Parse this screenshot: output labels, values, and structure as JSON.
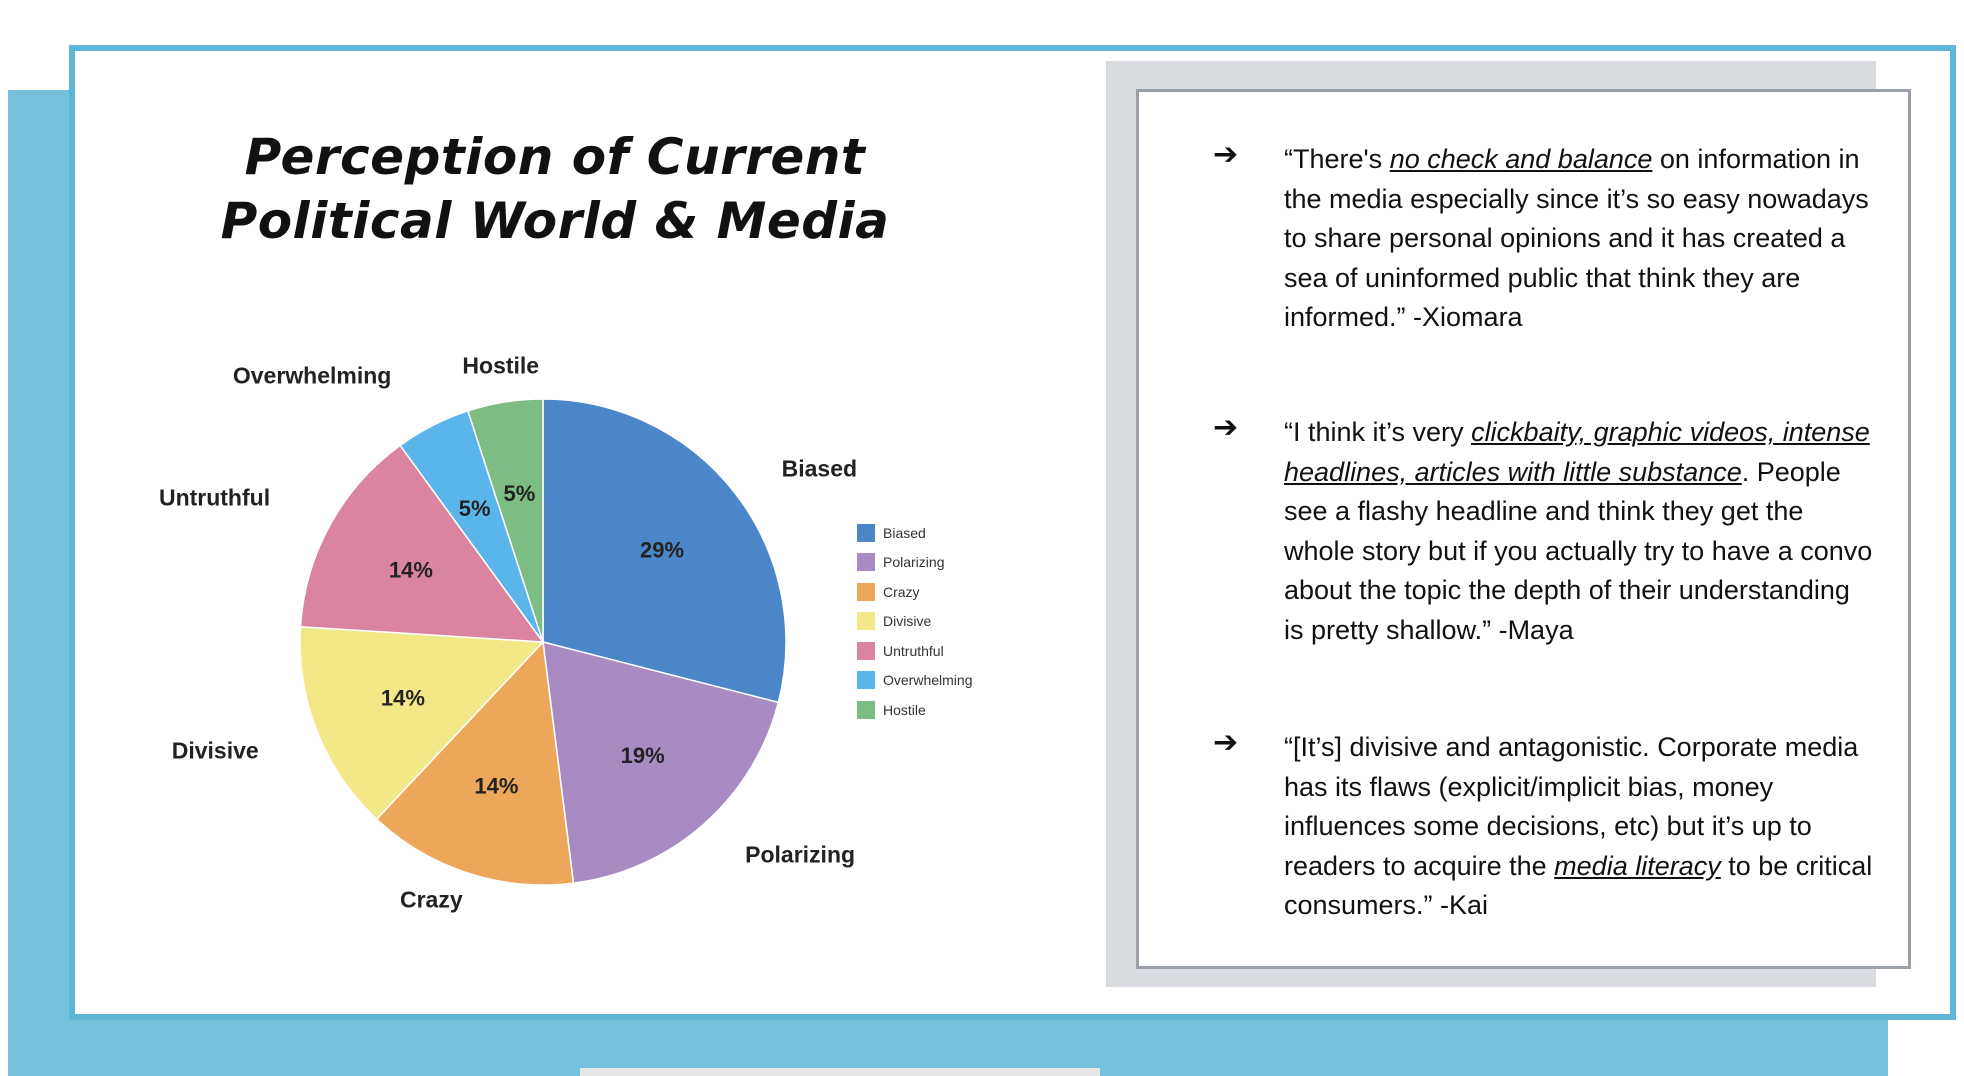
{
  "chart_data": {
    "type": "pie",
    "title": [
      "Perception of Current",
      "Political World & Media"
    ],
    "slices": [
      {
        "label": "Biased",
        "value": 29,
        "display": "29%",
        "color": "#4a86c8"
      },
      {
        "label": "Polarizing",
        "value": 19,
        "display": "19%",
        "color": "#a98bc4"
      },
      {
        "label": "Crazy",
        "value": 14,
        "display": "14%",
        "color": "#eda75a"
      },
      {
        "label": "Divisive",
        "value": 14,
        "display": "14%",
        "color": "#f3e887"
      },
      {
        "label": "Untruthful",
        "value": 14,
        "display": "14%",
        "color": "#da84a0"
      },
      {
        "label": "Overwhelming",
        "value": 5,
        "display": "5%",
        "color": "#5ab6ea"
      },
      {
        "label": "Hostile",
        "value": 5,
        "display": "5%",
        "color": "#7dbd83"
      }
    ],
    "legend_position": "right"
  },
  "quotes": [
    {
      "parts": [
        {
          "text": "“There's ",
          "em": false
        },
        {
          "text": "no check and balance",
          "em": true
        },
        {
          "text": " on information in the media especially since it’s so easy nowadays to share personal opinions and it has created a sea of uninformed public that think they are informed.” -Xiomara",
          "em": false
        }
      ]
    },
    {
      "parts": [
        {
          "text": "“I think it’s very ",
          "em": false
        },
        {
          "text": "clickbaity, graphic videos, intense headlines, articles with little substance",
          "em": true
        },
        {
          "text": ". People see a flashy headline and think they get the whole story but if you actually try to have a convo about the topic the depth of their understanding is pretty shallow.” -Maya",
          "em": false
        }
      ]
    },
    {
      "parts": [
        {
          "text": "“[It’s] divisive and antagonistic. Corporate media has its flaws (explicit/implicit bias, money influences some decisions, etc) but it’s up to readers to acquire the ",
          "em": false
        },
        {
          "text": "media literacy",
          "em": true
        },
        {
          "text": " to be critical consumers.” -Kai",
          "em": false
        }
      ]
    }
  ],
  "arrow_glyph": "➔"
}
